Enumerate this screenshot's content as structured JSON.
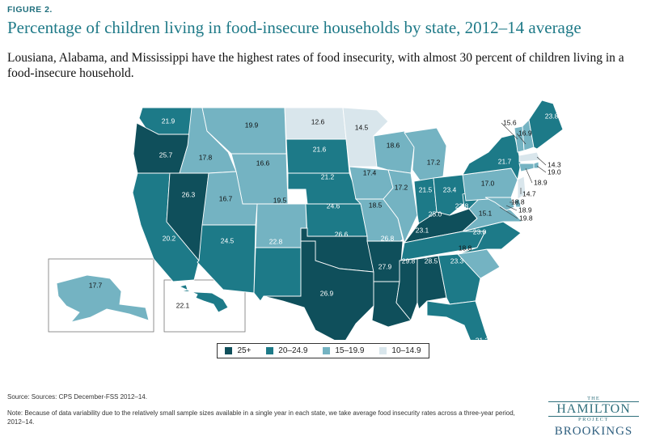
{
  "figure_label": "FIGURE 2.",
  "title": "Percentage of children living in food-insecure households by state, 2012–14 average",
  "subtitle": "Lousiana, Alabama, and Mississippi have the highest rates of food insecurity, with almost 30 percent of children living in a food-insecure household.",
  "colors": {
    "c1": "#0f4f5b",
    "c2": "#1d7a88",
    "c3": "#74b3c2",
    "c4": "#d9e6ec",
    "text_title": "#1f7a88"
  },
  "legend": {
    "items": [
      {
        "label": "25+",
        "color": "#0f4f5b"
      },
      {
        "label": "20–24.9",
        "color": "#1d7a88"
      },
      {
        "label": "15–19.9",
        "color": "#74b3c2"
      },
      {
        "label": "10–14.9",
        "color": "#d9e6ec"
      }
    ]
  },
  "chart_data": {
    "type": "choropleth",
    "unit": "percent",
    "bins": [
      "25+",
      "20–24.9",
      "15–19.9",
      "10–14.9"
    ],
    "values": {
      "WA": "21.9",
      "OR": "25.7",
      "CA": "20.2",
      "NV": "26.3",
      "ID": "17.8",
      "MT": "19.9",
      "WY": "16.6",
      "UT": "16.7",
      "CO": "19.5",
      "AZ": "24.5",
      "NM": "22.8",
      "ND": "12.6",
      "SD": "21.6",
      "NE": "21.2",
      "KS": "24.6",
      "OK": "26.6",
      "TX": "26.9",
      "MN": "14.5",
      "IA": "17.4",
      "MO": "18.5",
      "AR": "26.8",
      "LA": "27.9",
      "WI": "18.6",
      "IL": "17.2",
      "MI": "17.2",
      "IN": "21.5",
      "OH": "23.4",
      "KY": "25.0",
      "TN": "23.1",
      "MS": "29.8",
      "AL": "28.5",
      "GA": "23.3",
      "FL": "21.3",
      "SC": "18.8",
      "NC": "23.0",
      "VA": "15.1",
      "WV": "22.8",
      "PA": "17.0",
      "NY": "21.7",
      "VT": "15.6",
      "NH": "16.9",
      "ME": "23.8",
      "MA": "14.3",
      "RI": "19.0",
      "CT": "18.9",
      "NJ": "14.7",
      "DE": "18.8",
      "MD": "18.9",
      "DC": "19.8",
      "AK": "17.7",
      "HI": "22.1"
    }
  },
  "source": "Source: Sources: CPS December-FSS 2012–14.",
  "note": "Note: Because of data variability due to the relatively small sample sizes available in a single year in each state, we take average food insecurity rates across a three-year period, 2012–14.",
  "logo": {
    "the": "THE",
    "hamilton": "HAMILTON",
    "project": "PROJECT",
    "brookings": "BROOKINGS"
  }
}
